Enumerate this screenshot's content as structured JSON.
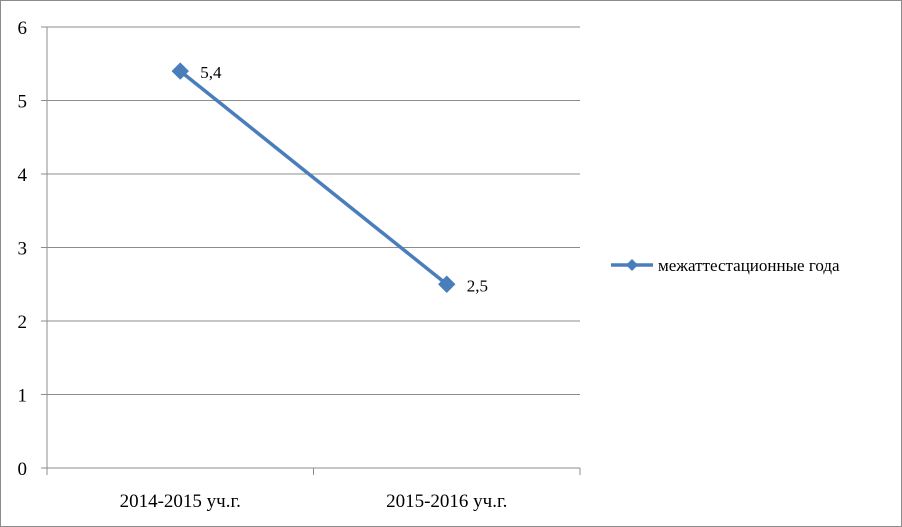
{
  "chart_data": {
    "type": "line",
    "title": "",
    "xlabel": "",
    "ylabel": "",
    "categories": [
      "2014-2015  уч.г.",
      "2015-2016  уч.г."
    ],
    "ylim": [
      0,
      6
    ],
    "yticks": [
      "0",
      "1",
      "2",
      "3",
      "4",
      "5",
      "6"
    ],
    "grid": true,
    "legend": "right",
    "series": [
      {
        "name": "межаттестационные  года",
        "values": [
          5.4,
          2.5
        ],
        "data_labels": [
          "5,4",
          "2,5"
        ],
        "color": "#4a7ebb",
        "marker": "diamond"
      }
    ]
  }
}
